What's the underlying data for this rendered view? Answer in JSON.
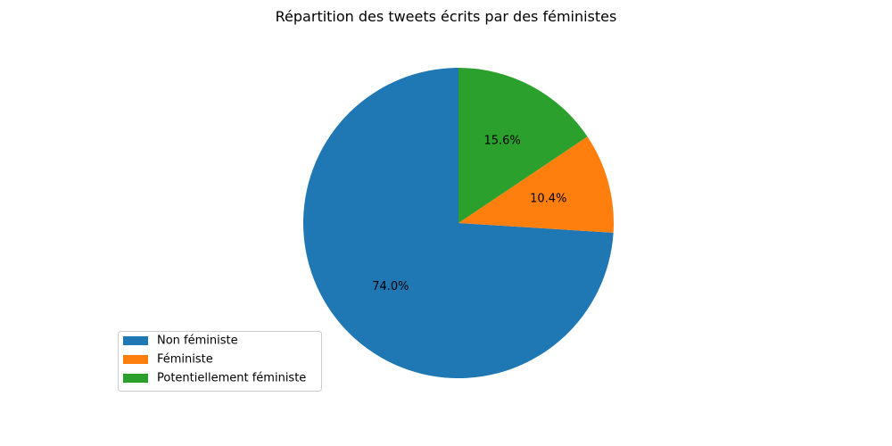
{
  "chart_data": {
    "type": "pie",
    "title": "Répartition des tweets écrits par des féministes",
    "categories": [
      "Non féministe",
      "Féministe",
      "Potentiellement féministe"
    ],
    "values": [
      74.0,
      10.4,
      15.6
    ],
    "labels": [
      "74.0%",
      "10.4%",
      "15.6%"
    ],
    "colors": [
      "#1f77b4",
      "#ff7f0e",
      "#2ca02c"
    ],
    "start_angle_deg": 90,
    "direction": "counterclockwise",
    "legend": {
      "placement": "lower-left",
      "entries": [
        "Non féministe",
        "Féministe",
        "Potentiellement féministe"
      ]
    }
  }
}
